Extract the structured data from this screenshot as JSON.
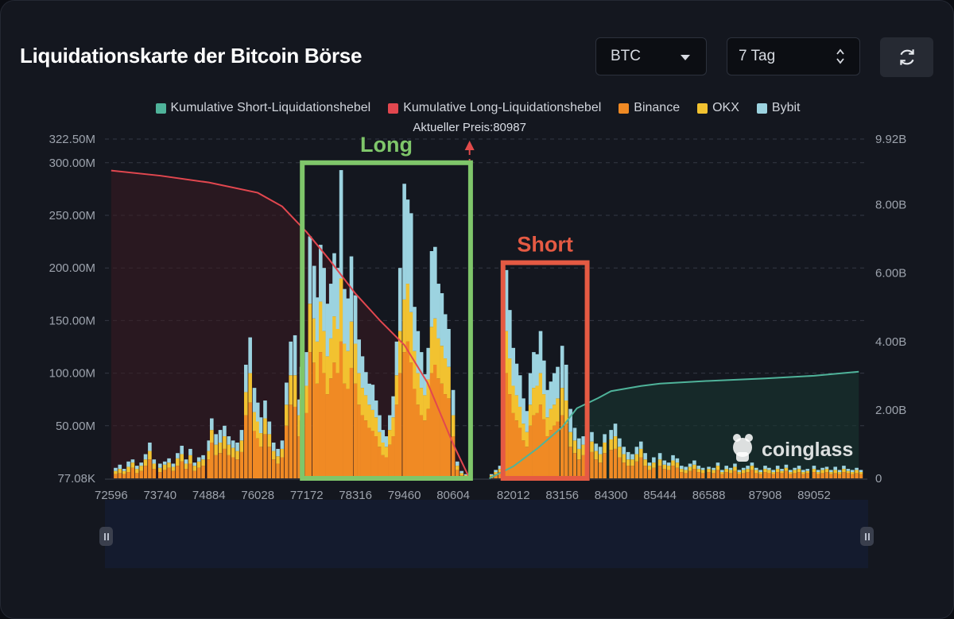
{
  "header": {
    "title": "Liquidationskarte der Bitcoin Börse",
    "coin_select": "BTC",
    "period_select": "7 Tag",
    "refresh_icon": "refresh-icon"
  },
  "chart_data": {
    "type": "bar",
    "x_ticks": [
      "72596",
      "73740",
      "74884",
      "76028",
      "77172",
      "78316",
      "79460",
      "80604",
      "82012",
      "83156",
      "84300",
      "85444",
      "86588",
      "87908",
      "89052"
    ],
    "y_left_ticks": [
      "322.50M",
      "300.00M",
      "250.00M",
      "200.00M",
      "150.00M",
      "100.00M",
      "50.00M",
      "77.08K"
    ],
    "y_right_ticks": [
      "9.92B",
      "8.00B",
      "6.00B",
      "4.00B",
      "2.00B",
      "0"
    ],
    "ylim_left": [
      0,
      322.5
    ],
    "ylim_right": [
      0,
      9.92
    ],
    "legend": [
      {
        "name": "Kumulative Short-Liquidationshebel",
        "color": "#4fb39a"
      },
      {
        "name": "Kumulative Long-Liquidationshebel",
        "color": "#e2474f"
      },
      {
        "name": "Binance",
        "color": "#f08a24"
      },
      {
        "name": "OKX",
        "color": "#f2c230"
      },
      {
        "name": "Bybit",
        "color": "#9cd3e0"
      }
    ],
    "current_price_label": "Aktueller Preis:80987",
    "current_price": 80987,
    "x_range": [
      72450,
      90300
    ],
    "annotations": [
      {
        "label": "Long",
        "color": "#7fc66a",
        "x_from": 77070,
        "x_to": 81010,
        "y_top": 300
      },
      {
        "label": "Short",
        "color": "#e55a43",
        "x_from": 81770,
        "x_to": 83740,
        "y_top": 205
      }
    ],
    "long_cumulative_curve": [
      [
        72596,
        9.0
      ],
      [
        73740,
        8.85
      ],
      [
        74884,
        8.65
      ],
      [
        76028,
        8.35
      ],
      [
        76600,
        7.95
      ],
      [
        77172,
        7.2
      ],
      [
        77700,
        6.4
      ],
      [
        78316,
        5.4
      ],
      [
        78900,
        4.6
      ],
      [
        79460,
        3.9
      ],
      [
        80000,
        2.8
      ],
      [
        80604,
        1.0
      ],
      [
        80987,
        0.0
      ]
    ],
    "short_cumulative_curve": [
      [
        81450,
        0.0
      ],
      [
        82012,
        0.35
      ],
      [
        82600,
        0.9
      ],
      [
        83156,
        1.5
      ],
      [
        83500,
        2.05
      ],
      [
        84000,
        2.35
      ],
      [
        84300,
        2.55
      ],
      [
        85000,
        2.7
      ],
      [
        85444,
        2.77
      ],
      [
        86588,
        2.85
      ],
      [
        87908,
        2.92
      ],
      [
        89052,
        3.0
      ],
      [
        90100,
        3.12
      ]
    ],
    "bars": [
      [
        72700,
        4,
        3,
        3
      ],
      [
        72800,
        5,
        4,
        4
      ],
      [
        72900,
        4,
        3,
        2
      ],
      [
        73000,
        6,
        5,
        5
      ],
      [
        73100,
        10,
        5,
        3
      ],
      [
        73200,
        5,
        4,
        3
      ],
      [
        73300,
        7,
        5,
        3
      ],
      [
        73400,
        12,
        6,
        5
      ],
      [
        73500,
        18,
        8,
        8
      ],
      [
        73600,
        9,
        5,
        4
      ],
      [
        73740,
        6,
        4,
        4
      ],
      [
        73850,
        8,
        5,
        3
      ],
      [
        73950,
        10,
        5,
        4
      ],
      [
        74050,
        7,
        4,
        3
      ],
      [
        74150,
        12,
        7,
        5
      ],
      [
        74250,
        16,
        7,
        8
      ],
      [
        74350,
        9,
        5,
        4
      ],
      [
        74450,
        14,
        8,
        6
      ],
      [
        74550,
        7,
        5,
        3
      ],
      [
        74650,
        10,
        6,
        4
      ],
      [
        74750,
        12,
        6,
        4
      ],
      [
        74884,
        18,
        8,
        10
      ],
      [
        74950,
        34,
        12,
        11
      ],
      [
        75050,
        22,
        10,
        10
      ],
      [
        75150,
        24,
        10,
        12
      ],
      [
        75250,
        28,
        12,
        10
      ],
      [
        75350,
        22,
        10,
        8
      ],
      [
        75450,
        20,
        9,
        7
      ],
      [
        75550,
        18,
        8,
        8
      ],
      [
        75650,
        25,
        11,
        10
      ],
      [
        75750,
        60,
        22,
        26
      ],
      [
        75850,
        72,
        28,
        34
      ],
      [
        75950,
        45,
        18,
        23
      ],
      [
        76028,
        38,
        16,
        18
      ],
      [
        76100,
        30,
        13,
        15
      ],
      [
        76200,
        42,
        15,
        17
      ],
      [
        76300,
        30,
        12,
        12
      ],
      [
        76400,
        18,
        8,
        8
      ],
      [
        76500,
        14,
        7,
        7
      ],
      [
        76600,
        20,
        8,
        8
      ],
      [
        76700,
        50,
        20,
        21
      ],
      [
        76800,
        70,
        28,
        32
      ],
      [
        76900,
        68,
        30,
        38
      ],
      [
        77000,
        40,
        20,
        15
      ],
      [
        77050,
        55,
        25,
        26
      ],
      [
        77172,
        62,
        26,
        32
      ],
      [
        77250,
        120,
        46,
        64
      ],
      [
        77350,
        110,
        42,
        50
      ],
      [
        77420,
        90,
        40,
        42
      ],
      [
        77500,
        120,
        48,
        54
      ],
      [
        77580,
        100,
        40,
        60
      ],
      [
        77660,
        80,
        36,
        50
      ],
      [
        77740,
        95,
        38,
        52
      ],
      [
        77820,
        110,
        44,
        60
      ],
      [
        77900,
        100,
        42,
        58
      ],
      [
        77980,
        130,
        60,
        103
      ],
      [
        78060,
        90,
        38,
        52
      ],
      [
        78140,
        85,
        36,
        50
      ],
      [
        78220,
        105,
        44,
        62
      ],
      [
        78316,
        90,
        38,
        46
      ],
      [
        78400,
        70,
        30,
        32
      ],
      [
        78480,
        60,
        26,
        30
      ],
      [
        78560,
        55,
        24,
        22
      ],
      [
        78640,
        48,
        22,
        20
      ],
      [
        78720,
        45,
        20,
        24
      ],
      [
        78800,
        40,
        18,
        16
      ],
      [
        78880,
        30,
        14,
        16
      ],
      [
        78960,
        22,
        12,
        12
      ],
      [
        79040,
        20,
        10,
        10
      ],
      [
        79120,
        32,
        14,
        14
      ],
      [
        79200,
        40,
        18,
        20
      ],
      [
        79280,
        70,
        28,
        32
      ],
      [
        79360,
        100,
        40,
        60
      ],
      [
        79460,
        120,
        50,
        110
      ],
      [
        79540,
        130,
        55,
        80
      ],
      [
        79620,
        110,
        48,
        94
      ],
      [
        79700,
        85,
        36,
        42
      ],
      [
        79780,
        70,
        30,
        40
      ],
      [
        79860,
        60,
        26,
        34
      ],
      [
        79940,
        55,
        24,
        20
      ],
      [
        80020,
        66,
        28,
        30
      ],
      [
        80100,
        100,
        44,
        72
      ],
      [
        80180,
        108,
        44,
        68
      ],
      [
        80260,
        95,
        38,
        52
      ],
      [
        80340,
        90,
        36,
        50
      ],
      [
        80420,
        80,
        34,
        42
      ],
      [
        80500,
        76,
        30,
        36
      ],
      [
        80604,
        40,
        20,
        24
      ],
      [
        80700,
        8,
        4,
        4
      ],
      [
        80800,
        3,
        2,
        2
      ],
      [
        80900,
        2,
        1,
        1
      ],
      [
        81500,
        2,
        1,
        1
      ],
      [
        81600,
        4,
        2,
        2
      ],
      [
        81700,
        6,
        3,
        3
      ],
      [
        81850,
        100,
        40,
        58
      ],
      [
        81930,
        80,
        34,
        46
      ],
      [
        82012,
        62,
        26,
        36
      ],
      [
        82090,
        55,
        24,
        30
      ],
      [
        82170,
        48,
        20,
        30
      ],
      [
        82250,
        36,
        16,
        24
      ],
      [
        82330,
        30,
        14,
        20
      ],
      [
        82410,
        50,
        20,
        30
      ],
      [
        82490,
        60,
        26,
        34
      ],
      [
        82570,
        62,
        26,
        30
      ],
      [
        82650,
        70,
        30,
        40
      ],
      [
        82730,
        56,
        24,
        32
      ],
      [
        82810,
        40,
        18,
        26
      ],
      [
        82890,
        46,
        20,
        26
      ],
      [
        82970,
        50,
        20,
        30
      ],
      [
        83050,
        54,
        22,
        30
      ],
      [
        83156,
        60,
        26,
        40
      ],
      [
        83250,
        52,
        22,
        34
      ],
      [
        83350,
        30,
        14,
        22
      ],
      [
        83450,
        24,
        12,
        12
      ],
      [
        83550,
        18,
        10,
        10
      ],
      [
        83650,
        22,
        10,
        8
      ],
      [
        83750,
        14,
        8,
        7
      ],
      [
        83850,
        25,
        10,
        9
      ],
      [
        83950,
        18,
        8,
        7
      ],
      [
        84050,
        15,
        8,
        7
      ],
      [
        84150,
        24,
        10,
        8
      ],
      [
        84300,
        27,
        10,
        9
      ],
      [
        84400,
        28,
        12,
        12
      ],
      [
        84500,
        20,
        10,
        8
      ],
      [
        84600,
        15,
        8,
        7
      ],
      [
        84700,
        12,
        6,
        7
      ],
      [
        84800,
        12,
        6,
        5
      ],
      [
        84900,
        16,
        7,
        7
      ],
      [
        85000,
        20,
        8,
        7
      ],
      [
        85100,
        12,
        6,
        6
      ],
      [
        85200,
        8,
        4,
        3
      ],
      [
        85300,
        10,
        5,
        5
      ],
      [
        85444,
        12,
        6,
        6
      ],
      [
        85550,
        9,
        4,
        4
      ],
      [
        85650,
        8,
        4,
        3
      ],
      [
        85750,
        12,
        5,
        5
      ],
      [
        85850,
        10,
        5,
        4
      ],
      [
        85950,
        6,
        3,
        3
      ],
      [
        86050,
        5,
        3,
        3
      ],
      [
        86150,
        7,
        4,
        3
      ],
      [
        86250,
        9,
        4,
        4
      ],
      [
        86350,
        6,
        3,
        3
      ],
      [
        86450,
        5,
        3,
        2
      ],
      [
        86588,
        6,
        3,
        2
      ],
      [
        86700,
        5,
        3,
        2
      ],
      [
        86800,
        8,
        4,
        3
      ],
      [
        86900,
        4,
        2,
        2
      ],
      [
        87000,
        6,
        3,
        3
      ],
      [
        87100,
        5,
        3,
        2
      ],
      [
        87200,
        7,
        4,
        3
      ],
      [
        87300,
        4,
        2,
        2
      ],
      [
        87400,
        5,
        3,
        2
      ],
      [
        87500,
        6,
        3,
        3
      ],
      [
        87600,
        8,
        4,
        3
      ],
      [
        87700,
        5,
        3,
        2
      ],
      [
        87800,
        4,
        2,
        2
      ],
      [
        87908,
        6,
        3,
        3
      ],
      [
        88000,
        5,
        3,
        2
      ],
      [
        88100,
        4,
        2,
        2
      ],
      [
        88200,
        6,
        3,
        3
      ],
      [
        88300,
        5,
        2,
        2
      ],
      [
        88400,
        7,
        3,
        3
      ],
      [
        88500,
        4,
        2,
        2
      ],
      [
        88600,
        5,
        3,
        2
      ],
      [
        88700,
        6,
        3,
        3
      ],
      [
        88800,
        4,
        2,
        2
      ],
      [
        88900,
        5,
        2,
        2
      ],
      [
        89052,
        6,
        3,
        3
      ],
      [
        89150,
        4,
        2,
        2
      ],
      [
        89250,
        5,
        3,
        2
      ],
      [
        89350,
        6,
        3,
        2
      ],
      [
        89450,
        4,
        2,
        2
      ],
      [
        89550,
        5,
        3,
        3
      ],
      [
        89650,
        4,
        2,
        2
      ],
      [
        89750,
        6,
        3,
        3
      ],
      [
        89850,
        5,
        2,
        2
      ],
      [
        89950,
        4,
        2,
        2
      ],
      [
        90050,
        5,
        3,
        2
      ],
      [
        90150,
        4,
        2,
        2
      ]
    ],
    "watermark": "coinglass"
  }
}
